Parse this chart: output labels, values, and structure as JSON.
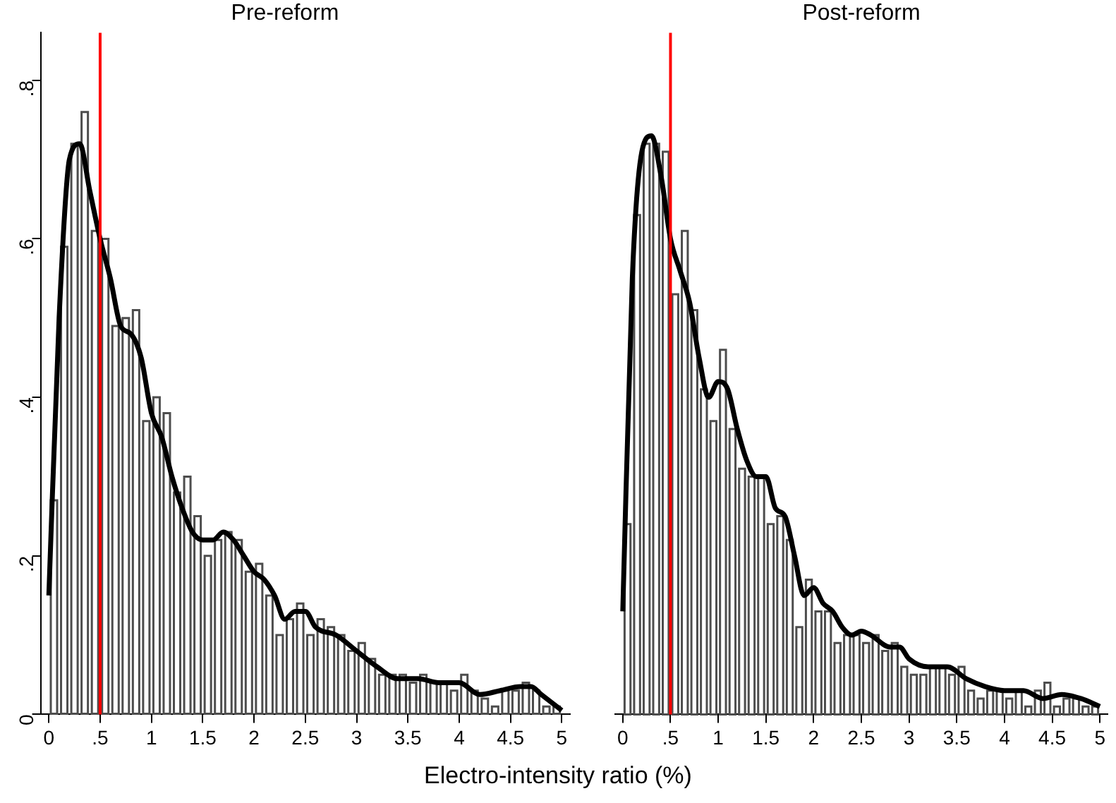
{
  "chart_data": [
    {
      "type": "histogram",
      "title": "Pre-reform",
      "xlabel": "Electro-intensity ratio (%)",
      "xlim": [
        -0.08,
        5.08
      ],
      "xticks": [
        0,
        {
          "value": 0.5,
          "label": ".5"
        },
        1,
        1.5,
        2,
        2.5,
        3,
        3.5,
        4,
        4.5,
        5
      ],
      "ylim": [
        0,
        0.86
      ],
      "yticks": [
        0,
        {
          "value": 0.2,
          "label": ".2"
        },
        {
          "value": 0.4,
          "label": ".4"
        },
        {
          "value": 0.6,
          "label": ".6"
        },
        {
          "value": 0.8,
          "label": ".8"
        }
      ],
      "ref_lines": [
        {
          "axis": "x",
          "value": 0.5,
          "color": "#ff0000"
        }
      ],
      "series": [
        {
          "color": "#4d4d4d",
          "bins": [
            0,
            0.1,
            0.2,
            0.3,
            0.4,
            0.5,
            0.6,
            0.7,
            0.8,
            0.9,
            1,
            1.1,
            1.2,
            1.3,
            1.4,
            1.5,
            1.6,
            1.7,
            1.8,
            1.9,
            2,
            2.1,
            2.2,
            2.3,
            2.4,
            2.5,
            2.6,
            2.7,
            2.8,
            2.9,
            3,
            3.1,
            3.2,
            3.3,
            3.4,
            3.5,
            3.6,
            3.7,
            3.8,
            3.9,
            4,
            4.1,
            4.2,
            4.3,
            4.4,
            4.5,
            4.6,
            4.7,
            4.8,
            4.9,
            5
          ],
          "values": [
            0.27,
            0.59,
            0.72,
            0.76,
            0.61,
            0.6,
            0.49,
            0.5,
            0.51,
            0.37,
            0.4,
            0.38,
            0.28,
            0.3,
            0.25,
            0.2,
            0.22,
            0.23,
            0.22,
            0.18,
            0.19,
            0.15,
            0.1,
            0.12,
            0.14,
            0.1,
            0.12,
            0.11,
            0.1,
            0.08,
            0.09,
            0.07,
            0.05,
            0.05,
            0.05,
            0.04,
            0.05,
            0.04,
            0.04,
            0.03,
            0.05,
            0.03,
            0.02,
            0.01,
            0.03,
            0.03,
            0.04,
            0.03,
            0.01,
            0.01
          ]
        },
        {
          "type": "line",
          "color": "#000000",
          "x": [
            0,
            0.1,
            0.2,
            0.3,
            0.4,
            0.5,
            0.6,
            0.7,
            0.8,
            0.9,
            1,
            1.1,
            1.2,
            1.3,
            1.4,
            1.5,
            1.6,
            1.7,
            1.8,
            1.9,
            2,
            2.1,
            2.2,
            2.3,
            2.4,
            2.5,
            2.6,
            2.8,
            3,
            3.2,
            3.4,
            3.6,
            3.8,
            4,
            4.2,
            4.4,
            4.6,
            4.7,
            4.8,
            5
          ],
          "values": [
            0.15,
            0.5,
            0.7,
            0.72,
            0.66,
            0.6,
            0.55,
            0.49,
            0.48,
            0.45,
            0.38,
            0.35,
            0.3,
            0.26,
            0.23,
            0.22,
            0.22,
            0.23,
            0.22,
            0.2,
            0.18,
            0.17,
            0.15,
            0.12,
            0.13,
            0.13,
            0.11,
            0.1,
            0.08,
            0.06,
            0.045,
            0.045,
            0.04,
            0.04,
            0.025,
            0.03,
            0.035,
            0.035,
            0.025,
            0.005
          ]
        }
      ]
    },
    {
      "type": "histogram",
      "title": "Post-reform",
      "tick_labels": "x",
      "xlim": [
        -0.08,
        5.08
      ],
      "xticks": [
        0,
        {
          "value": 0.5,
          "label": ".5"
        },
        1,
        1.5,
        2,
        2.5,
        3,
        3.5,
        4,
        4.5,
        5
      ],
      "ylim": [
        0,
        0.86
      ],
      "ref_lines": [
        {
          "axis": "x",
          "value": 0.5,
          "color": "#ff0000"
        }
      ],
      "series": [
        {
          "color": "#4d4d4d",
          "bins": [
            0,
            0.1,
            0.2,
            0.3,
            0.4,
            0.5,
            0.6,
            0.7,
            0.8,
            0.9,
            1,
            1.1,
            1.2,
            1.3,
            1.4,
            1.5,
            1.6,
            1.7,
            1.8,
            1.9,
            2,
            2.1,
            2.2,
            2.3,
            2.4,
            2.5,
            2.6,
            2.7,
            2.8,
            2.9,
            3,
            3.1,
            3.2,
            3.3,
            3.4,
            3.5,
            3.6,
            3.7,
            3.8,
            3.9,
            4,
            4.1,
            4.2,
            4.3,
            4.4,
            4.5,
            4.6,
            4.7,
            4.8,
            4.9,
            5
          ],
          "values": [
            0.24,
            0.63,
            0.72,
            0.72,
            0.71,
            0.53,
            0.61,
            0.51,
            0.41,
            0.37,
            0.46,
            0.36,
            0.31,
            0.3,
            0.3,
            0.24,
            0.25,
            0.22,
            0.11,
            0.17,
            0.13,
            0.13,
            0.09,
            0.1,
            0.1,
            0.09,
            0.1,
            0.08,
            0.09,
            0.06,
            0.05,
            0.05,
            0.06,
            0.06,
            0.05,
            0.06,
            0.03,
            0.02,
            0.03,
            0.03,
            0.02,
            0.03,
            0.01,
            0.03,
            0.04,
            0.01,
            0.02,
            0.02,
            0.01,
            0.01
          ]
        },
        {
          "type": "line",
          "color": "#000000",
          "x": [
            0,
            0.1,
            0.2,
            0.3,
            0.4,
            0.5,
            0.6,
            0.7,
            0.8,
            0.9,
            1,
            1.1,
            1.2,
            1.3,
            1.4,
            1.5,
            1.6,
            1.7,
            1.8,
            1.9,
            2,
            2.1,
            2.2,
            2.3,
            2.4,
            2.5,
            2.6,
            2.8,
            2.9,
            3,
            3.2,
            3.4,
            3.6,
            3.8,
            4,
            4.2,
            4.4,
            4.6,
            4.8,
            5
          ],
          "values": [
            0.13,
            0.55,
            0.71,
            0.73,
            0.68,
            0.6,
            0.56,
            0.52,
            0.45,
            0.4,
            0.42,
            0.41,
            0.36,
            0.32,
            0.3,
            0.3,
            0.26,
            0.25,
            0.2,
            0.15,
            0.16,
            0.14,
            0.13,
            0.11,
            0.1,
            0.105,
            0.1,
            0.085,
            0.085,
            0.07,
            0.06,
            0.06,
            0.045,
            0.035,
            0.03,
            0.03,
            0.02,
            0.025,
            0.02,
            0.01
          ]
        }
      ]
    }
  ]
}
